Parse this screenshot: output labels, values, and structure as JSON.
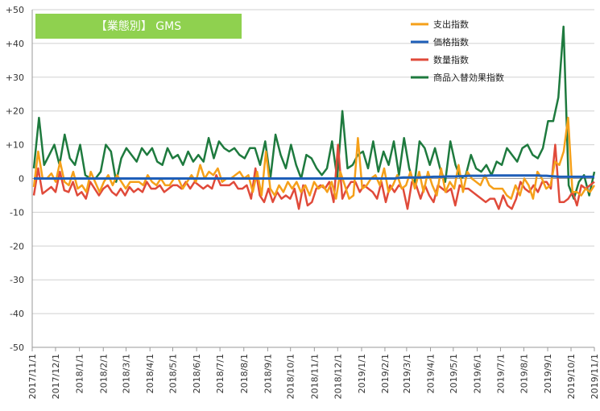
{
  "chart_data": {
    "type": "line",
    "title": "【業態別】 GMS",
    "ylim": [
      -50,
      50
    ],
    "ytick_values": [
      50,
      40,
      30,
      20,
      10,
      0,
      -10,
      -20,
      -30,
      -40,
      -50
    ],
    "ytick_labels": [
      "+50",
      "+40",
      "+30",
      "+20",
      "+10",
      "0",
      "-10",
      "-20",
      "-30",
      "-40",
      "-50"
    ],
    "x_labels": [
      "2017/11/1",
      "2017/12/1",
      "2018/1/1",
      "2018/2/1",
      "2018/3/1",
      "2018/4/1",
      "2018/5/1",
      "2018/6/1",
      "2018/7/1",
      "2018/8/1",
      "2018/9/1",
      "2018/10/1",
      "2018/11/1",
      "2018/12/1",
      "2019/1/1",
      "2019/2/1",
      "2019/3/1",
      "2019/4/1",
      "2019/5/1",
      "2019/6/1",
      "2019/7/1",
      "2019/8/1",
      "2019/9/1",
      "2019/10/1",
      "2019/11/1"
    ],
    "x_label_positions": [
      0,
      4.3,
      8.7,
      13.1,
      17.3,
      21.7,
      25.9,
      30.3,
      34.6,
      39.0,
      43.4,
      47.6,
      52.0,
      56.3,
      60.7,
      65.0,
      69.0,
      73.4,
      77.6,
      82.0,
      86.3,
      90.6,
      95.0,
      99.3,
      103.6
    ],
    "grid": "horizontal",
    "legend_position": "top-right",
    "series": [
      {
        "name": "支出指数",
        "color": "#f5a01a",
        "values": [
          -2.5,
          8,
          0,
          0,
          1.5,
          -1,
          5,
          -1,
          -2,
          2,
          -3,
          -2,
          -4,
          2,
          -1,
          -4,
          -1,
          1,
          -2,
          1,
          -1,
          -3,
          -1,
          -1,
          -1,
          -2,
          1,
          -1,
          -2,
          0,
          -2,
          -2,
          0,
          0,
          -3,
          -1,
          1,
          -1,
          4,
          0,
          2,
          1,
          3,
          -1,
          0,
          0,
          1,
          2,
          0,
          1,
          -4,
          2,
          -5,
          8,
          -3,
          -5,
          -2,
          -4,
          -1,
          -3,
          -1,
          -4,
          -2,
          -5,
          -1,
          -3,
          -2,
          -4,
          -1,
          -6,
          2,
          -2,
          -6,
          -5,
          12,
          -3,
          -2,
          0,
          1,
          -2,
          3,
          -4,
          -2,
          1,
          -3,
          -2,
          2,
          -3,
          2,
          -4,
          2,
          -2,
          -5,
          3,
          -4,
          -1,
          -3,
          4,
          -4,
          2,
          0,
          -1,
          -2,
          1,
          -2,
          -3,
          -3,
          -3,
          -5,
          -6,
          -2,
          -5,
          0,
          -2,
          -6,
          2,
          0,
          -3,
          -2,
          5,
          4,
          8,
          18,
          -4,
          -4,
          -5,
          -3,
          -4,
          -2
        ],
        "line_width": 2.5
      },
      {
        "name": "価格指数",
        "color": "#1f5fb8",
        "values": [
          0,
          0,
          0,
          0,
          0,
          0,
          0,
          0,
          0,
          0,
          0,
          0,
          0,
          0,
          0,
          0,
          0,
          0,
          0,
          0,
          0,
          0,
          0,
          0,
          0,
          0,
          0,
          0,
          0,
          0,
          0,
          0,
          0,
          0,
          0,
          0,
          0,
          0,
          0,
          0,
          0,
          0,
          0,
          0,
          0,
          0,
          0,
          0,
          0,
          0,
          0,
          0,
          0,
          0,
          0,
          0,
          0,
          0,
          0,
          0,
          0,
          0,
          0,
          0,
          0,
          0,
          0,
          0,
          0,
          0,
          0,
          0,
          0,
          0,
          0,
          0,
          0,
          0,
          0,
          0,
          0,
          0,
          0,
          0,
          0.2,
          0.3,
          0.3,
          0.3,
          0.3,
          0.3,
          0.4,
          0.4,
          0.5,
          0.5,
          0.5,
          0.6,
          0.6,
          0.6,
          0.7,
          0.7,
          0.8,
          0.8,
          0.8,
          0.8,
          0.8,
          0.9,
          0.9,
          0.9,
          0.9,
          0.9,
          0.9,
          0.9,
          0.9,
          0.9,
          0.9,
          0.9,
          0.9,
          0.8,
          0.8,
          0.7,
          0.6,
          0.5,
          0.5,
          0.5,
          0.5,
          0.5,
          0.5,
          0.5,
          0.5,
          0.5
        ],
        "line_width": 3
      },
      {
        "name": "数量指数",
        "color": "#e04a3a",
        "values": [
          -5,
          3,
          -4.5,
          -3.5,
          -2.5,
          -4,
          2,
          -3.5,
          -4,
          -1,
          -5,
          -4,
          -6,
          -1,
          -3,
          -5,
          -3,
          -2,
          -4,
          -5,
          -3,
          -5,
          -2.5,
          -4,
          -3,
          -4,
          -1,
          -3,
          -3,
          -2,
          -4,
          -3,
          -2,
          -2,
          -3,
          -1,
          -3,
          -1,
          -2,
          -3,
          -2,
          -3,
          1,
          -2,
          -2,
          -2,
          -1,
          -3,
          -3,
          -2,
          -6,
          3,
          -5,
          -7,
          -3,
          -7,
          -4,
          -6,
          -5,
          -6,
          -3,
          -9,
          -2,
          -8,
          -7,
          -3,
          -2,
          -3,
          -1,
          -7,
          10,
          -6,
          -3,
          -1,
          -1,
          -4,
          -2,
          -3,
          -4,
          -6,
          -1,
          -7,
          -2,
          -4,
          -2,
          -3,
          -9,
          -1,
          -2,
          -6,
          -2,
          -5,
          -7,
          -2,
          -3,
          -4,
          -3,
          -8,
          -2,
          -3,
          -3,
          -4,
          -5,
          -6,
          -7,
          -6,
          -6,
          -9,
          -5,
          -8,
          -9,
          -6,
          -1,
          -3,
          -4,
          -2,
          -4,
          -1,
          -1,
          -3,
          10,
          -7,
          -7,
          -6,
          -4,
          -8,
          -2,
          -3,
          -2,
          -1
        ],
        "line_width": 2.5
      },
      {
        "name": "商品入替効果指数",
        "color": "#1e7a3e",
        "values": [
          3,
          18,
          4,
          7,
          10,
          4,
          13,
          6,
          4,
          10,
          1,
          0,
          0,
          2,
          10,
          8,
          -1,
          6,
          9,
          7,
          5,
          9,
          7,
          9,
          5,
          4,
          9,
          6,
          7,
          4,
          8,
          5,
          7,
          5,
          12,
          6,
          11,
          9,
          8,
          9,
          7,
          6,
          9,
          9,
          4,
          11,
          0,
          13,
          7,
          3,
          10,
          4,
          0,
          7,
          6,
          3,
          1,
          3,
          11,
          0,
          20,
          3,
          4,
          7,
          8,
          3,
          11,
          2,
          8,
          4,
          11,
          1,
          12,
          3,
          -2,
          11,
          9,
          4,
          9,
          3,
          -1,
          11,
          4,
          0,
          1,
          7,
          3,
          2,
          4,
          1,
          5,
          4,
          9,
          7,
          5,
          9,
          10,
          7,
          6,
          9,
          17,
          17,
          24,
          45,
          -2,
          -6,
          -1,
          1,
          -5,
          2
        ],
        "line_width": 2.5
      }
    ]
  }
}
